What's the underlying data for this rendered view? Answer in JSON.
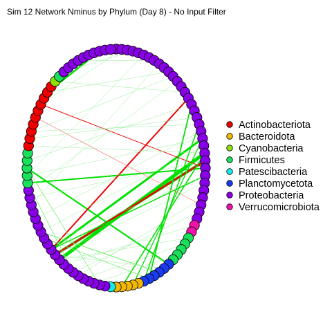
{
  "chart_data": {
    "type": "network",
    "title": "Sim 12 Network Nminus by Phylum (Day 8) - No Input Filter",
    "legend": {
      "placement": "right",
      "entries": [
        {
          "label": "Actinobacteriota",
          "color": "#ee0000"
        },
        {
          "label": "Bacteroidota",
          "color": "#f2b800"
        },
        {
          "label": "Cyanobacteria",
          "color": "#8ee000"
        },
        {
          "label": "Firmicutes",
          "color": "#19e05a"
        },
        {
          "label": "Patescibacteria",
          "color": "#19e8e8"
        },
        {
          "label": "Planctomycetota",
          "color": "#1a3cf0"
        },
        {
          "label": "Proteobacteria",
          "color": "#8800e6"
        },
        {
          "label": "Verrucomicrobiota",
          "color": "#ee11aa"
        }
      ]
    },
    "layout": "circle",
    "node_count": 100,
    "node_phyla": [
      "Proteobacteria",
      "Proteobacteria",
      "Proteobacteria",
      "Proteobacteria",
      "Proteobacteria",
      "Proteobacteria",
      "Proteobacteria",
      "Proteobacteria",
      "Proteobacteria",
      "Proteobacteria",
      "Proteobacteria",
      "Proteobacteria",
      "Proteobacteria",
      "Proteobacteria",
      "Proteobacteria",
      "Proteobacteria",
      "Proteobacteria",
      "Proteobacteria",
      "Proteobacteria",
      "Proteobacteria",
      "Proteobacteria",
      "Proteobacteria",
      "Proteobacteria",
      "Proteobacteria",
      "Proteobacteria",
      "Proteobacteria",
      "Proteobacteria",
      "Proteobacteria",
      "Proteobacteria",
      "Proteobacteria",
      "Proteobacteria",
      "Proteobacteria",
      "Proteobacteria",
      "Verrucomicrobiota",
      "Verrucomicrobiota",
      "Firmicutes",
      "Firmicutes",
      "Firmicutes",
      "Firmicutes",
      "Firmicutes",
      "Planctomycetota",
      "Planctomycetota",
      "Planctomycetota",
      "Planctomycetota",
      "Planctomycetota",
      "Planctomycetota",
      "Bacteroidota",
      "Bacteroidota",
      "Bacteroidota",
      "Bacteroidota",
      "Bacteroidota",
      "Patescibacteria",
      "Proteobacteria",
      "Proteobacteria",
      "Proteobacteria",
      "Proteobacteria",
      "Proteobacteria",
      "Proteobacteria",
      "Proteobacteria",
      "Proteobacteria",
      "Proteobacteria",
      "Proteobacteria",
      "Proteobacteria",
      "Proteobacteria",
      "Proteobacteria",
      "Proteobacteria",
      "Proteobacteria",
      "Proteobacteria",
      "Proteobacteria",
      "Proteobacteria",
      "Proteobacteria",
      "Proteobacteria",
      "Proteobacteria",
      "Firmicutes",
      "Firmicutes",
      "Firmicutes",
      "Firmicutes",
      "Firmicutes",
      "Actinobacteriota",
      "Actinobacteriota",
      "Actinobacteriota",
      "Actinobacteriota",
      "Actinobacteriota",
      "Actinobacteriota",
      "Actinobacteriota",
      "Actinobacteriota",
      "Actinobacteriota",
      "Actinobacteriota",
      "Cyanobacteria",
      "Firmicutes",
      "Proteobacteria",
      "Proteobacteria",
      "Proteobacteria",
      "Proteobacteria",
      "Proteobacteria",
      "Proteobacteria",
      "Proteobacteria",
      "Proteobacteria",
      "Proteobacteria",
      "Proteobacteria"
    ],
    "edges": [
      {
        "source": 88,
        "target": 93,
        "weight": 3,
        "color": "#00e000"
      },
      {
        "source": 86,
        "target": 97,
        "weight": 2.5,
        "color": "#00e000"
      },
      {
        "source": 73,
        "target": 25,
        "weight": 2,
        "color": "#00e000"
      },
      {
        "source": 75,
        "target": 40,
        "weight": 2.2,
        "color": "#00e000"
      },
      {
        "source": 61,
        "target": 23,
        "weight": 5,
        "color": "#00e000"
      },
      {
        "source": 62,
        "target": 24,
        "weight": 4,
        "color": "#00e000"
      },
      {
        "source": 63,
        "target": 21,
        "weight": 3,
        "color": "#00e000"
      },
      {
        "source": 62,
        "target": 24,
        "weight": 2.5,
        "color": "#ee0000"
      },
      {
        "source": 84,
        "target": 25,
        "weight": 1,
        "color": "#ee0000"
      },
      {
        "source": 63,
        "target": 15,
        "weight": 2,
        "color": "#ee0000"
      },
      {
        "source": 63,
        "target": 26,
        "weight": 1.5,
        "color": "#00e000"
      },
      {
        "source": 44,
        "target": 16,
        "weight": 1.8,
        "color": "#00e000"
      },
      {
        "source": 45,
        "target": 19,
        "weight": 1.5,
        "color": "#00e000"
      },
      {
        "source": 47,
        "target": 21,
        "weight": 1.3,
        "color": "#00e000"
      },
      {
        "source": 49,
        "target": 23,
        "weight": 1.6,
        "color": "#00e000"
      },
      {
        "source": 42,
        "target": 66,
        "weight": 1,
        "color": "#66ee66"
      },
      {
        "source": 44,
        "target": 65,
        "weight": 0.8,
        "color": "#77ee77"
      },
      {
        "source": 58,
        "target": 73,
        "weight": 0.8,
        "color": "#77ee77"
      },
      {
        "source": 53,
        "target": 75,
        "weight": 0.8,
        "color": "#77ee77"
      },
      {
        "source": 82,
        "target": 30,
        "weight": 0.6,
        "color": "#ff6060"
      },
      {
        "source": 5,
        "target": 74,
        "weight": 0.5,
        "color": "#99ee99"
      },
      {
        "source": 8,
        "target": 70,
        "weight": 0.5,
        "color": "#99ee99"
      },
      {
        "source": 14,
        "target": 88,
        "weight": 0.5,
        "color": "#99ee99"
      },
      {
        "source": 18,
        "target": 79,
        "weight": 0.5,
        "color": "#99ee99"
      },
      {
        "source": 20,
        "target": 68,
        "weight": 0.5,
        "color": "#99ee99"
      },
      {
        "source": 22,
        "target": 66,
        "weight": 0.5,
        "color": "#99ee99"
      },
      {
        "source": 27,
        "target": 62,
        "weight": 0.5,
        "color": "#99ee99"
      },
      {
        "source": 31,
        "target": 58,
        "weight": 0.5,
        "color": "#99ee99"
      },
      {
        "source": 33,
        "target": 60,
        "weight": 0.5,
        "color": "#99ee99"
      },
      {
        "source": 36,
        "target": 56,
        "weight": 0.5,
        "color": "#99ee99"
      },
      {
        "source": 12,
        "target": 72,
        "weight": 0.5,
        "color": "#99ee99"
      },
      {
        "source": 10,
        "target": 86,
        "weight": 0.5,
        "color": "#99ee99"
      },
      {
        "source": 3,
        "target": 90,
        "weight": 0.5,
        "color": "#99ee99"
      },
      {
        "source": 1,
        "target": 84,
        "weight": 0.5,
        "color": "#99ee99"
      },
      {
        "source": 24,
        "target": 71,
        "weight": 0.5,
        "color": "#99ee99"
      },
      {
        "source": 16,
        "target": 76,
        "weight": 0.5,
        "color": "#99ee99"
      },
      {
        "source": 38,
        "target": 54,
        "weight": 0.5,
        "color": "#99ee99"
      },
      {
        "source": 29,
        "target": 57,
        "weight": 0.5,
        "color": "#99ee99"
      },
      {
        "source": 7,
        "target": 93,
        "weight": 0.5,
        "color": "#99ee99"
      },
      {
        "source": 26,
        "target": 64,
        "weight": 0.5,
        "color": "#99ee99"
      },
      {
        "source": 19,
        "target": 80,
        "weight": 0.5,
        "color": "#99ee99"
      },
      {
        "source": 21,
        "target": 74,
        "weight": 0.5,
        "color": "#99ee99"
      },
      {
        "source": 35,
        "target": 61,
        "weight": 0.5,
        "color": "#99ee99"
      },
      {
        "source": 41,
        "target": 62,
        "weight": 0.5,
        "color": "#99ee99"
      },
      {
        "source": 11,
        "target": 80,
        "weight": 0.5,
        "color": "#99ee99"
      },
      {
        "source": 23,
        "target": 78,
        "weight": 0.5,
        "color": "#99ee99"
      }
    ]
  }
}
